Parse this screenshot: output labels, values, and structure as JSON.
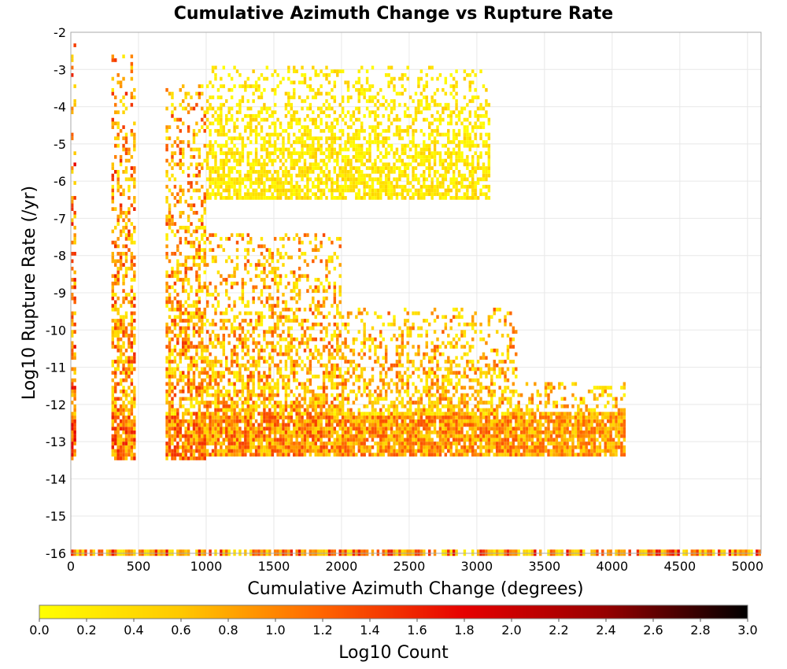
{
  "chart_data": {
    "type": "heatmap",
    "title": "Cumulative Azimuth Change vs Rupture Rate",
    "xlabel": "Cumulative Azimuth Change (degrees)",
    "ylabel": "Log10 Rupture Rate (/yr)",
    "xlim": [
      0,
      5100
    ],
    "ylim": [
      -16,
      -2
    ],
    "x_ticks": [
      "0",
      "500",
      "1000",
      "1500",
      "2000",
      "2500",
      "3000",
      "3500",
      "4000",
      "4500",
      "5000"
    ],
    "y_ticks": [
      "-2",
      "-3",
      "-4",
      "-5",
      "-6",
      "-7",
      "-8",
      "-9",
      "-10",
      "-11",
      "-12",
      "-13",
      "-14",
      "-15",
      "-16"
    ],
    "grid": true,
    "colorbar": {
      "label": "Log10 Count",
      "min": 0.0,
      "max": 3.0,
      "ticks": [
        "0.0",
        "0.2",
        "0.4",
        "0.6",
        "0.8",
        "1.0",
        "1.2",
        "1.4",
        "1.6",
        "1.8",
        "2.0",
        "2.2",
        "2.4",
        "2.6",
        "2.8",
        "3.0"
      ],
      "colors": [
        "#ffff00",
        "#ffc800",
        "#ff6400",
        "#e60000",
        "#960000",
        "#000000"
      ]
    },
    "bins": {
      "x_width": 20,
      "y_height": 0.1
    },
    "regions": [
      {
        "x_min": 0,
        "x_max": 40,
        "y_min": -13.5,
        "y_max": -2.1,
        "log_count_min": 0.4,
        "log_count_max": 1.8
      },
      {
        "x_min": 300,
        "x_max": 470,
        "y_min": -13.5,
        "y_max": -2.7,
        "log_count_min": 0.2,
        "log_count_max": 1.6
      },
      {
        "x_min": 700,
        "x_max": 1000,
        "y_min": -13.5,
        "y_max": -3.5,
        "log_count_min": 0.1,
        "log_count_max": 1.5
      },
      {
        "x_min": 1000,
        "x_max": 2000,
        "y_min": -13.4,
        "y_max": -7.5,
        "log_count_min": 0.1,
        "log_count_max": 1.4
      },
      {
        "x_min": 2000,
        "x_max": 3300,
        "y_min": -13.4,
        "y_max": -9.5,
        "log_count_min": 0.1,
        "log_count_max": 1.3
      },
      {
        "x_min": 3300,
        "x_max": 4100,
        "y_min": -13.4,
        "y_max": -11.5,
        "log_count_min": 0.1,
        "log_count_max": 1.2
      },
      {
        "x_min": 1000,
        "x_max": 3100,
        "y_min": -6.5,
        "y_max": -3.0,
        "log_count_min": 0.0,
        "log_count_max": 0.6
      },
      {
        "x_min": 0,
        "x_max": 5100,
        "y_min": -16.0,
        "y_max": -16.0,
        "log_count_min": 0.2,
        "log_count_max": 1.8
      }
    ]
  }
}
